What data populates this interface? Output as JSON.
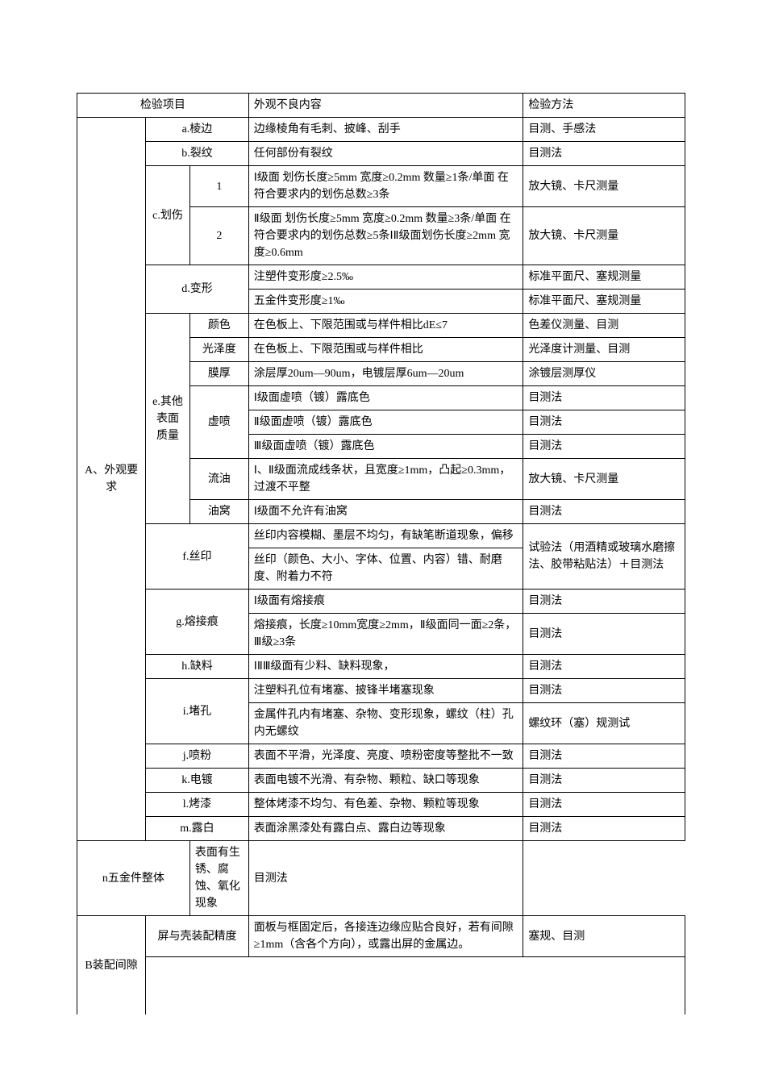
{
  "header": {
    "item": "检验项目",
    "defect": "外观不良内容",
    "method": "检验方法"
  },
  "sectionA": {
    "label": "A、外观要求",
    "a": {
      "name": "a.棱边",
      "defect": "边缘棱角有毛刺、披峰、刮手",
      "method": "目测、手感法"
    },
    "b": {
      "name": "b.裂纹",
      "defect": "任何部份有裂纹",
      "method": "目测法"
    },
    "c": {
      "name": "c.划伤",
      "r1": {
        "num": "1",
        "defect": "Ⅰ级面 划伤长度≥5mm 宽度≥0.2mm 数量≥1条/单面 在符合要求内的划伤总数≥3条",
        "method": "放大镜、卡尺测量"
      },
      "r2": {
        "num": "2",
        "defect": "Ⅱ级面 划伤长度≥5mm 宽度≥0.2mm 数量≥3条/单面 在符合要求内的划伤总数≥5条ⅠⅡ级面划伤长度≥2mm 宽度≥0.6mm",
        "method": "放大镜、卡尺测量"
      }
    },
    "d": {
      "name": "d.变形",
      "r1": {
        "defect": "注塑件变形度≥2.5‰",
        "method": "标准平面尺、塞规测量"
      },
      "r2": {
        "defect": "五金件变形度≥1‰",
        "method": "标准平面尺、塞规测量"
      }
    },
    "e": {
      "name": "e.其他表面质量",
      "color": {
        "sub": "颜色",
        "defect": "在色板上、下限范围或与样件相比dE≤7",
        "method": "色差仪测量、目测"
      },
      "gloss": {
        "sub": "光泽度",
        "defect": "在色板上、下限范围或与样件相比",
        "method": "光泽度计测量、目测"
      },
      "film": {
        "sub": "膜厚",
        "defect": "涂层厚20um—90um，电镀层厚6um—20um",
        "method": "涂镀层测厚仪"
      },
      "xupen": {
        "sub": "虚喷",
        "r1": {
          "defect": "Ⅰ级面虚喷（镀）露底色",
          "method": "目测法"
        },
        "r2": {
          "defect": "Ⅱ级面虚喷（镀）露底色",
          "method": "目测法"
        },
        "r3": {
          "defect": "Ⅲ级面虚喷（镀）露底色",
          "method": "目测法"
        }
      },
      "liuyou": {
        "sub": "流油",
        "defect": "Ⅰ、Ⅱ级面流成线条状，且宽度≥1mm，凸起≥0.3mm，过渡不平整",
        "method": "放大镜、卡尺测量"
      },
      "youwo": {
        "sub": "油窝",
        "defect": "Ⅰ级面不允许有油窝",
        "method": "目测法"
      }
    },
    "f": {
      "name": "f.丝印",
      "r1": {
        "defect": "丝印内容模糊、墨层不均匀，有缺笔断道现象，偏移"
      },
      "r2": {
        "defect": "丝印（颜色、大小、字体、位置、内容）错、耐磨度、附着力不符"
      },
      "method": "试验法（用酒精或玻璃水磨擦法、胶带粘贴法）＋目测法"
    },
    "g": {
      "name": "g.熔接痕",
      "r1": {
        "defect": "Ⅰ级面有熔接痕",
        "method": "目测法"
      },
      "r2": {
        "defect": "熔接痕，长度≥10mm宽度≥2mm，Ⅱ级面同一面≥2条，Ⅲ级≥3条",
        "method": "目测法"
      }
    },
    "h": {
      "name": "h.缺料",
      "defect": "ⅠⅡⅢ级面有少料、缺料现象，",
      "method": "目测法"
    },
    "i": {
      "name": "i.堵孔",
      "r1": {
        "defect": "注塑料孔位有堵塞、披锋半堵塞现象",
        "method": "目测法"
      },
      "r2": {
        "defect": "金属件孔内有堵塞、杂物、变形现象，螺纹（柱）孔内无螺纹",
        "method": "螺纹环（塞）规测试"
      }
    },
    "j": {
      "name": "j.喷粉",
      "defect": "表面不平滑，光泽度、亮度、喷粉密度等整批不一致",
      "method": "目测法"
    },
    "k": {
      "name": "k.电镀",
      "defect": "表面电镀不光滑、有杂物、颗粒、缺口等现象",
      "method": "目测法"
    },
    "l": {
      "name": "l.烤漆",
      "defect": "整体烤漆不均匀、有色差、杂物、颗粒等现象",
      "method": "目测法"
    },
    "m": {
      "name": "m.露白",
      "defect": "表面涂黑漆处有露白点、露白边等现象",
      "method": "目测法"
    },
    "n": {
      "name": "n五金件整体",
      "defect": "表面有生锈、腐蚀、氧化现象",
      "method": "目测法"
    }
  },
  "sectionB": {
    "label": "B装配间隙",
    "row": {
      "name": "屏与壳装配精度",
      "defect": "面板与框固定后，各接连边缘应贴合良好，若有间隙≥1mm（含各个方向），或露出屏的金属边。",
      "method": "塞规、目测"
    }
  }
}
